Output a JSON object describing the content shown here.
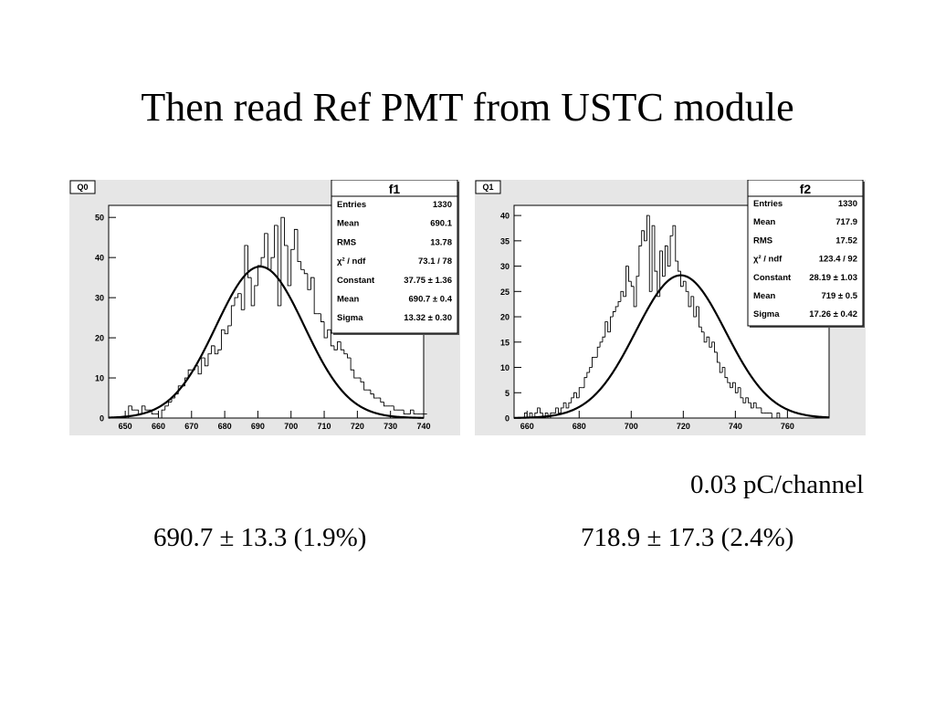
{
  "title": "Then read Ref PMT from USTC module",
  "note": "0.03 pC/channel",
  "results": [
    {
      "value": "690.7",
      "pm": "±",
      "sigma": "13.3",
      "percent": "(1.9%)"
    },
    {
      "value": "718.9",
      "pm": "±",
      "sigma": "17.3",
      "percent": "(2.4%)"
    }
  ],
  "chart_data": [
    {
      "type": "bar",
      "label": "Q0",
      "xlim": [
        645,
        740
      ],
      "ylim": [
        0,
        53
      ],
      "xticks": [
        650,
        660,
        670,
        680,
        690,
        700,
        710,
        720,
        730,
        740
      ],
      "yticks": [
        0,
        10,
        20,
        30,
        40,
        50
      ],
      "bin_start": 650,
      "bin_width": 1,
      "values": [
        0,
        3,
        2,
        2,
        1,
        3,
        2,
        2,
        1,
        1,
        0,
        2,
        3,
        4,
        5,
        6,
        8,
        8,
        10,
        12,
        12,
        13,
        11,
        15,
        13,
        16,
        18,
        16,
        17,
        22,
        21,
        23,
        28,
        30,
        31,
        27,
        43,
        35,
        28,
        33,
        38,
        40,
        46,
        37,
        40,
        48,
        28,
        50,
        43,
        33,
        42,
        47,
        39,
        37,
        36,
        32,
        35,
        26,
        26,
        24,
        20,
        22,
        18,
        17,
        19,
        17,
        16,
        15,
        12,
        10,
        10,
        9,
        7,
        7,
        6,
        5,
        5,
        4,
        3,
        3,
        3,
        2,
        2,
        2,
        1,
        1,
        2,
        1,
        1,
        1,
        1
      ],
      "fit": {
        "constant": 37.75,
        "mean": 690.7,
        "sigma": 13.32
      },
      "stats": {
        "title": "f1",
        "rows": [
          {
            "label": "Entries",
            "value": "1330"
          },
          {
            "label": "Mean",
            "value": "690.1"
          },
          {
            "label": "RMS",
            "value": "13.78"
          },
          {
            "label": "χ² / ndf",
            "value": "73.1 / 78"
          },
          {
            "label": "Constant",
            "value": "37.75 ± 1.36"
          },
          {
            "label": "Mean",
            "value": "690.7 ± 0.4"
          },
          {
            "label": "Sigma",
            "value": "13.32 ± 0.30"
          }
        ]
      }
    },
    {
      "type": "bar",
      "label": "Q1",
      "xlim": [
        655,
        776
      ],
      "ylim": [
        0,
        42
      ],
      "xticks": [
        660,
        680,
        700,
        720,
        740,
        760
      ],
      "yticks": [
        0,
        5,
        10,
        15,
        20,
        25,
        30,
        35,
        40
      ],
      "bin_start": 656,
      "bin_width": 1,
      "values": [
        0,
        0,
        0,
        1,
        0,
        1,
        0,
        1,
        2,
        1,
        0,
        1,
        0,
        1,
        1,
        2,
        1,
        2,
        3,
        2,
        3,
        4,
        5,
        4,
        6,
        6,
        8,
        9,
        10,
        12,
        12,
        14,
        15,
        16,
        19,
        17,
        20,
        21,
        22,
        23,
        25,
        24,
        30,
        27,
        26,
        22,
        28,
        34,
        37,
        35,
        40,
        25,
        38,
        29,
        24,
        33,
        28,
        34,
        30,
        36,
        38,
        31,
        29,
        26,
        27,
        25,
        22,
        24,
        20,
        22,
        18,
        17,
        15,
        16,
        14,
        15,
        13,
        11,
        9,
        10,
        8,
        7,
        6,
        7,
        5,
        6,
        4,
        3,
        4,
        3,
        2,
        3,
        2,
        2,
        1,
        1,
        1,
        1,
        0,
        0,
        1,
        0,
        0,
        0,
        0,
        0,
        0,
        0,
        0,
        0
      ],
      "fit": {
        "constant": 28.19,
        "mean": 719,
        "sigma": 17.26
      },
      "stats": {
        "title": "f2",
        "rows": [
          {
            "label": "Entries",
            "value": "1330"
          },
          {
            "label": "Mean",
            "value": "717.9"
          },
          {
            "label": "RMS",
            "value": "17.52"
          },
          {
            "label": "χ² / ndf",
            "value": "123.4 / 92"
          },
          {
            "label": "Constant",
            "value": "28.19 ± 1.03"
          },
          {
            "label": "Mean",
            "value": "719 ± 0.5"
          },
          {
            "label": "Sigma",
            "value": "17.26 ± 0.42"
          }
        ]
      }
    }
  ]
}
